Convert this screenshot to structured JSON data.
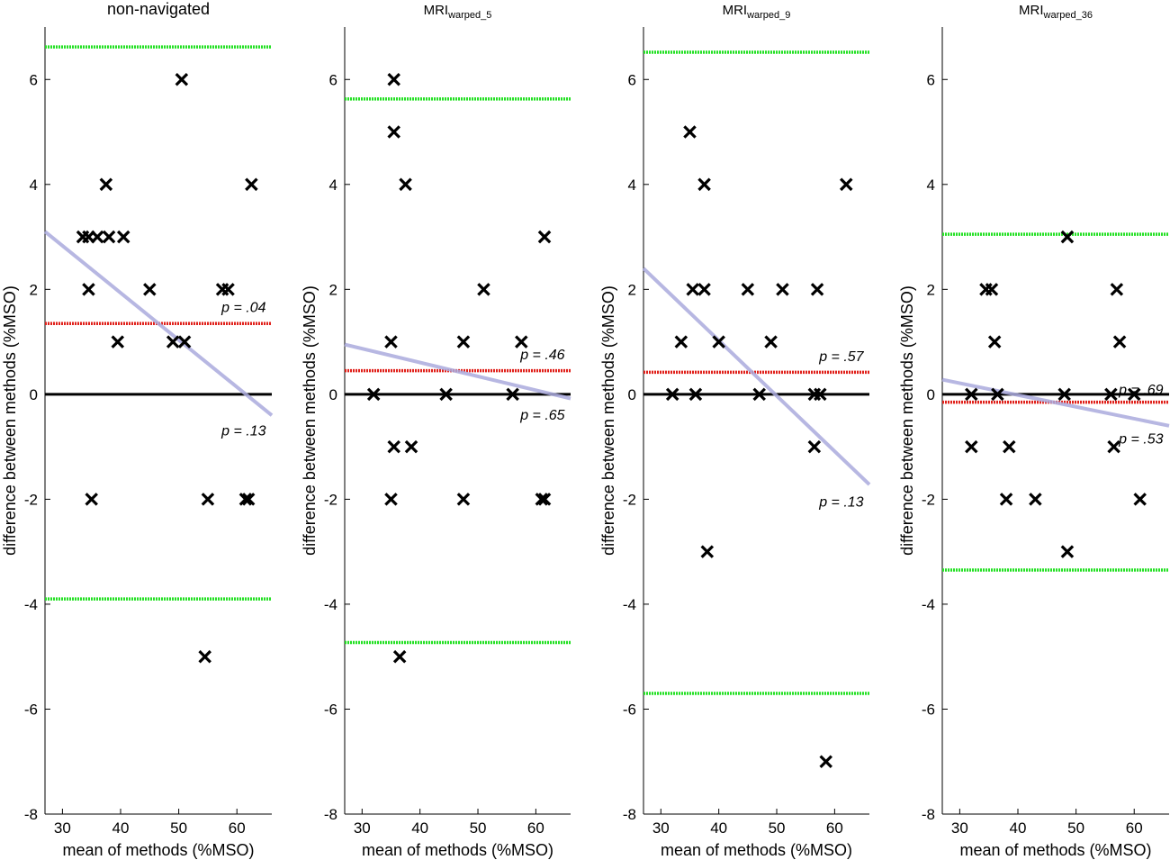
{
  "chart_data": [
    {
      "type": "scatter",
      "title": "non-navigated",
      "title_sub": "",
      "xlabel": "mean of methods (%MSO)",
      "ylabel": "difference between methods (%MSO)",
      "xlim": [
        27,
        66
      ],
      "ylim": [
        -8,
        7
      ],
      "xticks": [
        30,
        40,
        50,
        60
      ],
      "yticks": [
        -8,
        -6,
        -4,
        -2,
        0,
        2,
        4,
        6
      ],
      "points": [
        [
          33.5,
          3
        ],
        [
          34.5,
          3
        ],
        [
          36,
          3
        ],
        [
          38,
          3
        ],
        [
          40.5,
          3
        ],
        [
          37.5,
          4
        ],
        [
          34.5,
          2
        ],
        [
          45,
          2
        ],
        [
          57.5,
          2
        ],
        [
          58.5,
          2
        ],
        [
          39.5,
          1
        ],
        [
          49,
          1
        ],
        [
          51,
          1
        ],
        [
          50.5,
          6
        ],
        [
          62.5,
          4
        ],
        [
          35,
          -2
        ],
        [
          55,
          -2
        ],
        [
          61.5,
          -2
        ],
        [
          62,
          -2
        ],
        [
          54.5,
          -5
        ]
      ],
      "mean_diff": 1.35,
      "loa_upper": 6.62,
      "loa_lower": -3.9,
      "regression": [
        [
          27,
          3.1
        ],
        [
          66,
          -0.4
        ]
      ],
      "annotations": [
        {
          "text": "p = .04",
          "x": 65,
          "y": 1.65
        },
        {
          "text": "p = .13",
          "x": 65,
          "y": -0.7
        }
      ]
    },
    {
      "type": "scatter",
      "title": "MRI",
      "title_sub": "warped_5",
      "xlabel": "mean of methods (%MSO)",
      "ylabel": "difference between methods (%MSO)",
      "xlim": [
        27,
        66
      ],
      "ylim": [
        -8,
        7
      ],
      "xticks": [
        30,
        40,
        50,
        60
      ],
      "yticks": [
        -8,
        -6,
        -4,
        -2,
        0,
        2,
        4,
        6
      ],
      "points": [
        [
          35.5,
          6
        ],
        [
          35.5,
          5
        ],
        [
          37.5,
          4
        ],
        [
          61.5,
          3
        ],
        [
          51,
          2
        ],
        [
          35,
          1
        ],
        [
          47.5,
          1
        ],
        [
          57.5,
          1
        ],
        [
          32,
          0
        ],
        [
          44.5,
          0
        ],
        [
          56,
          0
        ],
        [
          35.5,
          -1
        ],
        [
          38.5,
          -1
        ],
        [
          35,
          -2
        ],
        [
          47.5,
          -2
        ],
        [
          61,
          -2
        ],
        [
          61.5,
          -2
        ],
        [
          36.5,
          -5
        ]
      ],
      "mean_diff": 0.45,
      "loa_upper": 5.63,
      "loa_lower": -4.73,
      "regression": [
        [
          27,
          0.95
        ],
        [
          66,
          -0.08
        ]
      ],
      "annotations": [
        {
          "text": "p = .46",
          "x": 65,
          "y": 0.75
        },
        {
          "text": "p = .65",
          "x": 65,
          "y": -0.4
        }
      ]
    },
    {
      "type": "scatter",
      "title": "MRI",
      "title_sub": "warped_9",
      "xlabel": "mean of methods (%MSO)",
      "ylabel": "difference between methods (%MSO)",
      "xlim": [
        27,
        66
      ],
      "ylim": [
        -8,
        7
      ],
      "xticks": [
        30,
        40,
        50,
        60
      ],
      "yticks": [
        -8,
        -6,
        -4,
        -2,
        0,
        2,
        4,
        6
      ],
      "points": [
        [
          35,
          5
        ],
        [
          37.5,
          4
        ],
        [
          62,
          4
        ],
        [
          35.5,
          2
        ],
        [
          37.5,
          2
        ],
        [
          45,
          2
        ],
        [
          51,
          2
        ],
        [
          57,
          2
        ],
        [
          33.5,
          1
        ],
        [
          40,
          1
        ],
        [
          49,
          1
        ],
        [
          32,
          0
        ],
        [
          36,
          0
        ],
        [
          47,
          0
        ],
        [
          56.5,
          0
        ],
        [
          57.5,
          0
        ],
        [
          56.5,
          -1
        ],
        [
          38,
          -3
        ],
        [
          58.5,
          -7
        ]
      ],
      "mean_diff": 0.42,
      "loa_upper": 6.52,
      "loa_lower": -5.7,
      "regression": [
        [
          27,
          2.4
        ],
        [
          66,
          -1.72
        ]
      ],
      "annotations": [
        {
          "text": "p = .57",
          "x": 65,
          "y": 0.72
        },
        {
          "text": "p = .13",
          "x": 65,
          "y": -2.05
        }
      ]
    },
    {
      "type": "scatter",
      "title": "MRI",
      "title_sub": "warped_36",
      "xlabel": "mean of methods (%MSO)",
      "ylabel": "difference between methods (%MSO)",
      "xlim": [
        27,
        66
      ],
      "ylim": [
        -8,
        7
      ],
      "xticks": [
        30,
        40,
        50,
        60
      ],
      "yticks": [
        -8,
        -6,
        -4,
        -2,
        0,
        2,
        4,
        6
      ],
      "points": [
        [
          48.5,
          3
        ],
        [
          34.5,
          2
        ],
        [
          35.5,
          2
        ],
        [
          57,
          2
        ],
        [
          36,
          1
        ],
        [
          57.5,
          1
        ],
        [
          32,
          0
        ],
        [
          36.5,
          0
        ],
        [
          48,
          0
        ],
        [
          56,
          0
        ],
        [
          60,
          0
        ],
        [
          32,
          -1
        ],
        [
          38.5,
          -1
        ],
        [
          56.5,
          -1
        ],
        [
          38,
          -2
        ],
        [
          43,
          -2
        ],
        [
          61,
          -2
        ],
        [
          48.5,
          -3
        ]
      ],
      "mean_diff": -0.15,
      "loa_upper": 3.05,
      "loa_lower": -3.35,
      "regression": [
        [
          27,
          0.28
        ],
        [
          66,
          -0.6
        ]
      ],
      "annotations": [
        {
          "text": "p = .69",
          "x": 65,
          "y": 0.08
        },
        {
          "text": "p = .53",
          "x": 65,
          "y": -0.85
        }
      ]
    }
  ],
  "colors": {
    "points": "#000000",
    "zero_line": "#000000",
    "mean_line": "#e0201a",
    "loa_line": "#22e022",
    "regression": "#aaaadd"
  }
}
